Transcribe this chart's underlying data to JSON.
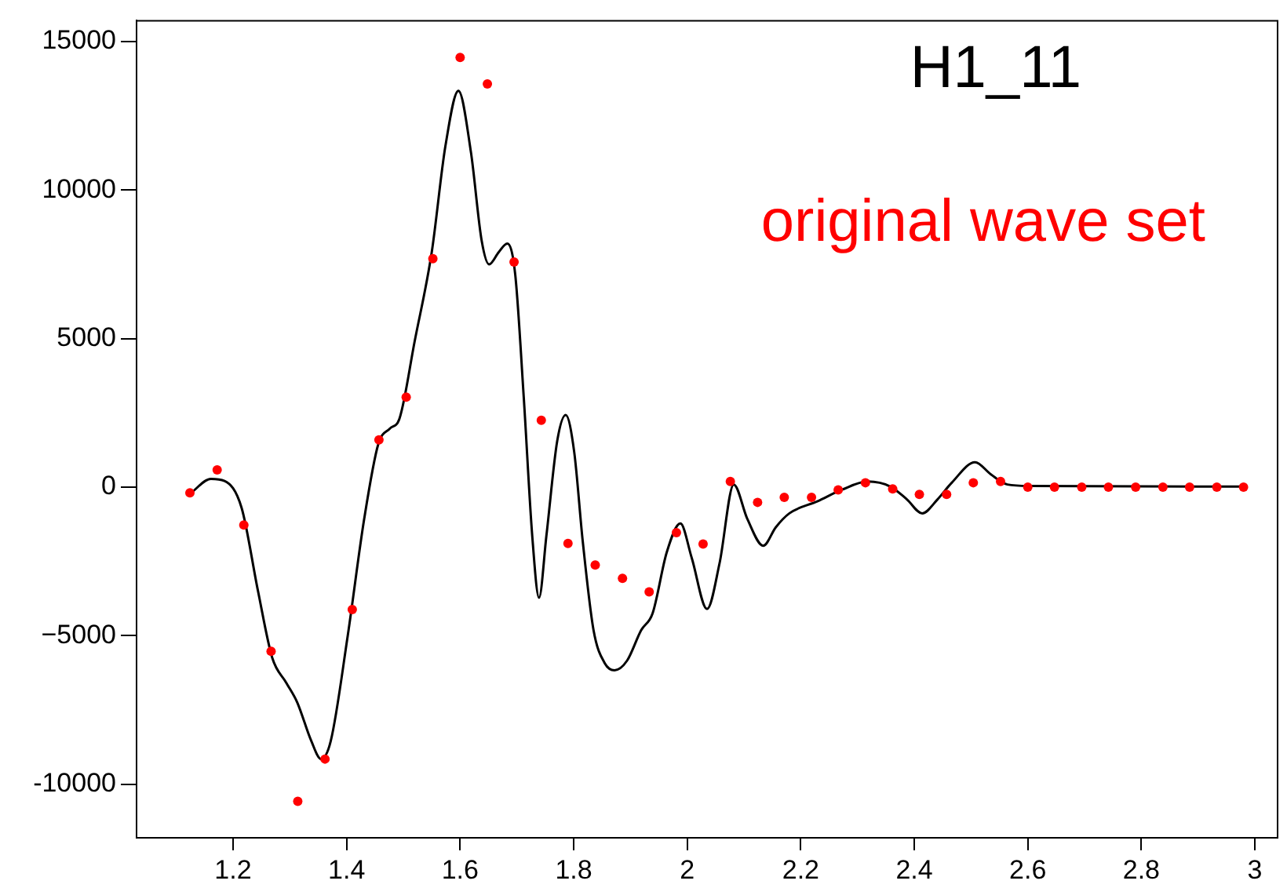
{
  "chart_data": {
    "type": "scatter",
    "title": "H1_11",
    "annotations": [
      "original wave set"
    ],
    "xlim": [
      1.03,
      3.04
    ],
    "xticks": [
      1.2,
      1.4,
      1.6,
      1.8,
      2,
      2.2,
      2.4,
      2.6,
      2.8,
      3
    ],
    "ylim": [
      -11800,
      15700
    ],
    "yticks": [
      {
        "value": -10000,
        "label": "-10000"
      },
      {
        "value": -5000,
        "label": "−5000"
      },
      0,
      5000,
      10000,
      15000
    ],
    "grid": false,
    "legend": false,
    "series": [
      {
        "type": "line",
        "color": "#000000",
        "marker": "none",
        "line_style": "solid",
        "x": [
          1.126,
          1.161,
          1.185,
          1.215,
          1.244,
          1.269,
          1.294,
          1.313,
          1.338,
          1.355,
          1.372,
          1.402,
          1.431,
          1.456,
          1.476,
          1.493,
          1.52,
          1.55,
          1.574,
          1.597,
          1.619,
          1.638,
          1.651,
          1.668,
          1.683,
          1.697,
          1.712,
          1.727,
          1.739,
          1.752,
          1.771,
          1.786,
          1.801,
          1.816,
          1.835,
          1.855,
          1.872,
          1.894,
          1.919,
          1.939,
          1.964,
          1.988,
          2.008,
          2.035,
          2.057,
          2.082,
          2.106,
          2.134,
          2.156,
          2.18,
          2.23,
          2.272,
          2.318,
          2.358,
          2.387,
          2.414,
          2.441,
          2.466,
          2.507,
          2.535,
          2.564,
          2.604,
          2.981
        ],
        "values": [
          -190,
          280,
          210,
          -690,
          -3500,
          -5740,
          -6590,
          -7240,
          -8550,
          -9150,
          -8550,
          -5000,
          -1070,
          1460,
          1970,
          2300,
          4920,
          7910,
          11470,
          13340,
          11280,
          8290,
          7500,
          7910,
          8200,
          7170,
          3050,
          -1630,
          -3720,
          -1630,
          1550,
          2430,
          1180,
          -1820,
          -4810,
          -5930,
          -6160,
          -5840,
          -4810,
          -4250,
          -2190,
          -1220,
          -2380,
          -4100,
          -2560,
          90,
          -1070,
          -1970,
          -1350,
          -880,
          -470,
          -90,
          190,
          20,
          -410,
          -880,
          -410,
          150,
          840,
          430,
          90,
          40,
          20
        ]
      },
      {
        "type": "scatter",
        "color": "#ff0000",
        "marker": "circle",
        "x": [
          1.124,
          1.172,
          1.219,
          1.267,
          1.314,
          1.362,
          1.41,
          1.457,
          1.505,
          1.552,
          1.6,
          1.648,
          1.695,
          1.743,
          1.79,
          1.838,
          1.886,
          1.933,
          1.981,
          2.028,
          2.076,
          2.124,
          2.171,
          2.219,
          2.266,
          2.314,
          2.362,
          2.409,
          2.457,
          2.504,
          2.552,
          2.6,
          2.647,
          2.695,
          2.742,
          2.79,
          2.838,
          2.885,
          2.933,
          2.98
        ],
        "values": [
          -190,
          580,
          -1270,
          -5520,
          -10570,
          -9150,
          -4120,
          1590,
          3030,
          7690,
          14460,
          13570,
          7580,
          2250,
          -1890,
          -2620,
          -3070,
          -3520,
          -1530,
          -1910,
          190,
          -510,
          -340,
          -340,
          -90,
          150,
          -60,
          -240,
          -240,
          150,
          190,
          0,
          0,
          0,
          0,
          0,
          0,
          0,
          0,
          0
        ]
      }
    ]
  }
}
